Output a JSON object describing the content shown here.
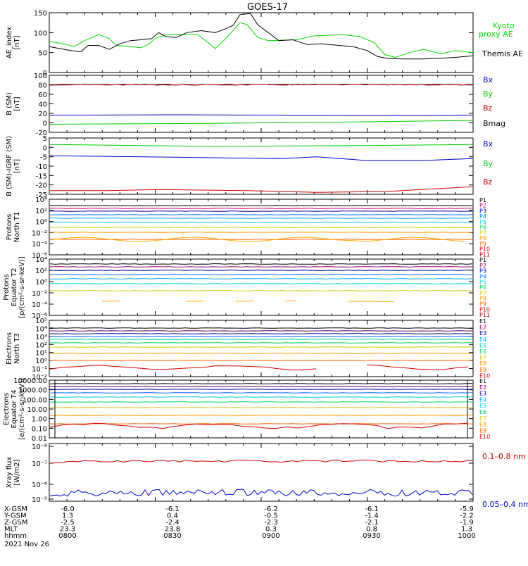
{
  "title": "GOES-17",
  "chart_data": [
    {
      "type": "line",
      "ylabel": "AE_index\n[nT]",
      "ylim": [
        0,
        150
      ],
      "yticks": [
        "150",
        "100",
        "50",
        "0"
      ],
      "series": [
        {
          "name": "Kyoto\nproxy AE",
          "color": "#00dd00",
          "x": [
            0,
            15,
            30,
            45,
            60,
            75,
            90,
            105,
            120
          ],
          "values": [
            70,
            65,
            95,
            66,
            65,
            63,
            95,
            95,
            95
          ]
        },
        {
          "name": "Themis AE",
          "color": "#000000",
          "x": [
            0,
            15,
            30,
            45,
            60,
            75,
            90,
            105,
            120
          ],
          "values": [
            62,
            55,
            60,
            62,
            78,
            110,
            60,
            140,
            78
          ]
        }
      ]
    },
    {
      "type": "line",
      "ylabel": "B (SM)\n[nT]",
      "ylim": [
        -20,
        100
      ],
      "yticks": [
        "100",
        "80",
        "60",
        "40",
        "20",
        "0",
        "-20"
      ],
      "series": [
        {
          "name": "Bx",
          "color": "#0000cc",
          "values": [
            16,
            16,
            16
          ]
        },
        {
          "name": "By",
          "color": "#00cc00",
          "values": [
            -3,
            -1,
            5
          ]
        },
        {
          "name": "Bz",
          "color": "#cc0000",
          "values": [
            80,
            80,
            81
          ]
        },
        {
          "name": "Bmag",
          "color": "#000000",
          "values": [
            81,
            81,
            82
          ]
        }
      ]
    },
    {
      "type": "line",
      "ylabel": "B (SM)-IGRF (SM)\n[nT]",
      "ylim": [
        -25,
        5
      ],
      "yticks": [
        "5",
        "0",
        "-5",
        "-10",
        "-15",
        "-20",
        "-25"
      ],
      "series": [
        {
          "name": "Bx",
          "color": "#0000cc",
          "values": [
            -5,
            -6,
            -7,
            -6
          ]
        },
        {
          "name": "By",
          "color": "#00cc00",
          "values": [
            1,
            1,
            0,
            1
          ]
        },
        {
          "name": "Bz",
          "color": "#cc0000",
          "values": [
            -23,
            -23,
            -24,
            -21
          ]
        }
      ]
    },
    {
      "type": "line",
      "ylabel": "Protons\nNorth T1",
      "ylog": true,
      "yticks": [
        "10⁴",
        "10²",
        "10⁰",
        "10⁻²",
        "10⁻⁴",
        "10⁻⁶"
      ],
      "legend": [
        "P1",
        "P2",
        "P3",
        "P4",
        "P5",
        "P6",
        "P7",
        "P8",
        "P9",
        "P10",
        "P11"
      ]
    },
    {
      "type": "line",
      "ylabel": "Protons\nEquator T2\n[p/(cm²-s-sr-keV)]",
      "ylog": true,
      "yticks": [
        "10⁴",
        "10²",
        "10⁰",
        "10⁻²",
        "10⁻⁴",
        "10⁻⁶"
      ],
      "legend": [
        "P1",
        "P2",
        "P3",
        "P4",
        "P5",
        "P6",
        "P7",
        "P8",
        "P9",
        "P10",
        "P11"
      ]
    },
    {
      "type": "line",
      "ylabel": "Electrons\nNorth T3",
      "ylog": true,
      "yticks": [
        "10⁵",
        "10⁴",
        "10³",
        "10²",
        "10¹",
        "10⁰",
        "10⁻¹",
        "10⁻²"
      ],
      "legend": [
        "E1",
        "E2",
        "E3",
        "E4",
        "E5",
        "E6",
        "E7",
        "E8",
        "E9",
        "E10"
      ]
    },
    {
      "type": "line",
      "ylabel": "Electrons\nEquator T4\n[e/(cm²-s-sr-keV)]",
      "ylog": true,
      "yticks": [
        "10000.00",
        "1000.00",
        "100.00",
        "10.00",
        "1.00",
        "0.10",
        "0.01"
      ],
      "legend": [
        "E1",
        "E2",
        "E3",
        "E4",
        "E5",
        "E6",
        "E7",
        "E8",
        "E9",
        "E10"
      ]
    },
    {
      "type": "line",
      "ylabel": "Xray flux\n[W/m2]",
      "ylog": true,
      "yticks": [
        "10⁻⁸",
        "10⁻⁷",
        "10⁻⁶",
        "10⁻⁹"
      ],
      "series": [
        {
          "name": "0.1–0.8 nm",
          "color": "#cc0000",
          "values": [
            1.2e-07,
            1.2e-07
          ]
        },
        {
          "name": "0.05–0.4 nm",
          "color": "#0000cc",
          "values": [
            3e-09,
            3e-09
          ]
        }
      ]
    }
  ],
  "xaxis": {
    "rows": [
      {
        "label": "X-GSM",
        "values": [
          "-6.0",
          "-6.1",
          "-6.2",
          "-6.1",
          "-5.9"
        ]
      },
      {
        "label": "Y-GSM",
        "values": [
          "1.3",
          "0.4",
          "-0.5",
          "-1.4",
          "-2.2"
        ]
      },
      {
        "label": "Z-GSM",
        "values": [
          "-2.5",
          "-2.4",
          "-2.3",
          "-2.1",
          "-1.9"
        ]
      },
      {
        "label": "MLT",
        "values": [
          "23.3",
          "23.8",
          "0.3",
          "0.8",
          "1.3"
        ]
      },
      {
        "label": "hhmm",
        "values": [
          "0800",
          "0830",
          "0900",
          "0930",
          "1000"
        ]
      }
    ],
    "date": "2021 Nov 26"
  },
  "colors": {
    "green": "#00dd00",
    "black": "#000000",
    "blue": "#0000cc",
    "red": "#cc0000",
    "navy": "#000088",
    "cyan": "#00cccc",
    "yellow": "#cccc00",
    "orange": "#ff8800",
    "darkred": "#990000"
  }
}
